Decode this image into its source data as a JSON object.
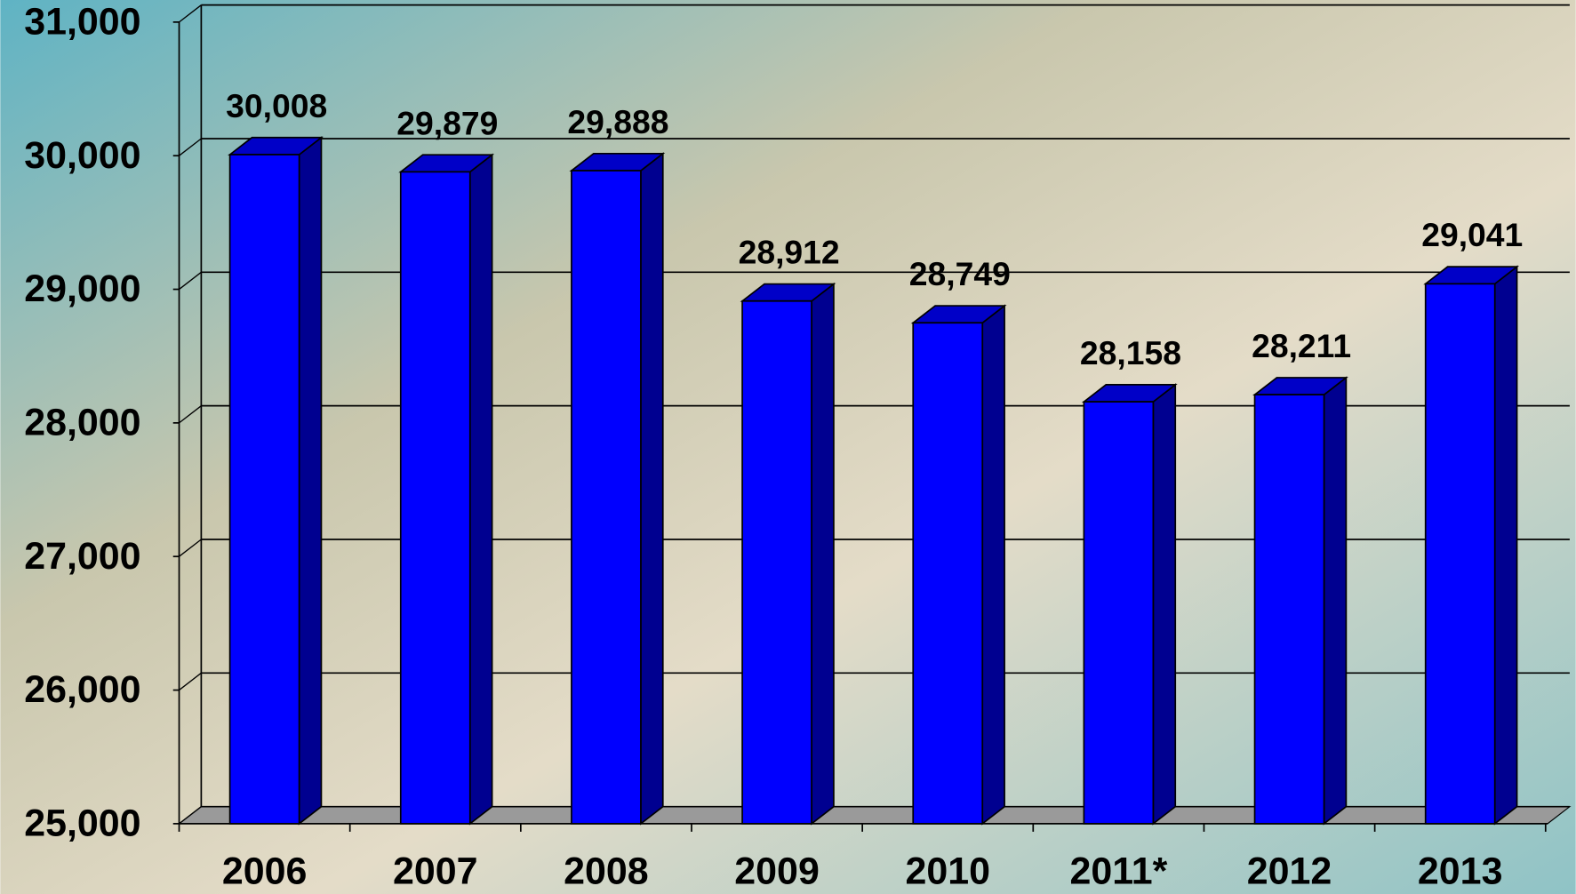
{
  "chart_data": {
    "type": "bar3d",
    "categories": [
      "2006",
      "2007",
      "2008",
      "2009",
      "2010",
      "2011*",
      "2012",
      "2013"
    ],
    "values": [
      30008,
      29879,
      29888,
      28912,
      28749,
      28158,
      28211,
      29041
    ],
    "value_labels": [
      "30,008",
      "29,879",
      "29,888",
      "28,912",
      "28,749",
      "28,158",
      "28,211",
      "29,041"
    ],
    "color": "#0000ff",
    "ylim": [
      25000,
      31000
    ],
    "yticks": [
      {
        "value": 25000,
        "label": "25,000"
      },
      {
        "value": 26000,
        "label": "26,000"
      },
      {
        "value": 27000,
        "label": "27,000"
      },
      {
        "value": 28000,
        "label": "28,000"
      },
      {
        "value": 29000,
        "label": "29,000"
      },
      {
        "value": 30000,
        "label": "30,000"
      },
      {
        "value": 31000,
        "label": "31,000"
      }
    ],
    "grid": true
  }
}
